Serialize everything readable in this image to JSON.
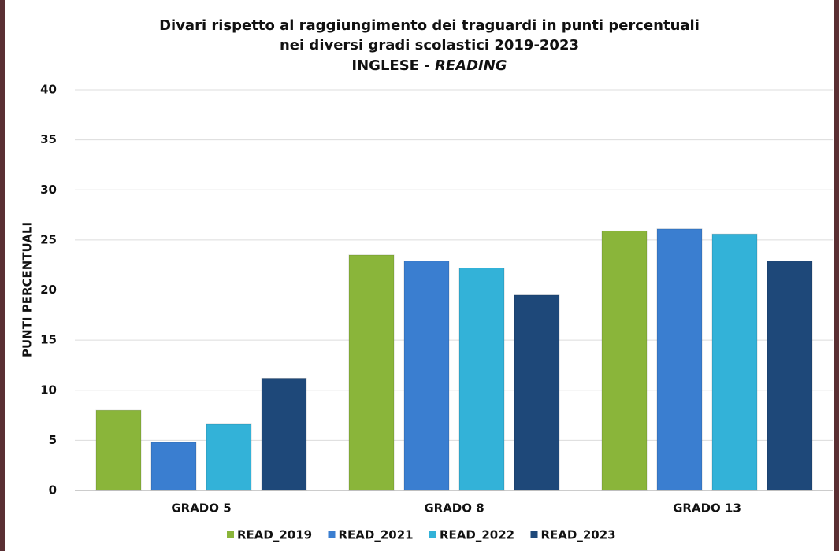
{
  "chart_data": {
    "type": "bar",
    "title": [
      "Divari rispetto al raggiungimento dei traguardi in punti percentuali",
      "nei diversi gradi scolastici 2019-2023"
    ],
    "subtitle": [
      "INGLESE -",
      "READING"
    ],
    "y_label": "PUNTI PERCENTUALI",
    "categories": [
      "GRADO 5",
      "GRADO 8",
      "GRADO 13"
    ],
    "series": [
      {
        "name": "READ_2019",
        "color": "#8ab53a",
        "values": [
          8.0,
          23.5,
          25.9
        ]
      },
      {
        "name": "READ_2021",
        "color": "#3a7ed0",
        "values": [
          4.8,
          22.9,
          26.1
        ]
      },
      {
        "name": "READ_2022",
        "color": "#33b2d8",
        "values": [
          6.6,
          22.2,
          25.6
        ]
      },
      {
        "name": "READ_2023",
        "color": "#1e4879",
        "values": [
          11.2,
          19.5,
          22.9
        ]
      }
    ],
    "ylim": [
      0,
      40
    ],
    "yticks": [
      0,
      5,
      10,
      15,
      20,
      25,
      30,
      35,
      40
    ],
    "grid": true,
    "legend": "bottom"
  }
}
